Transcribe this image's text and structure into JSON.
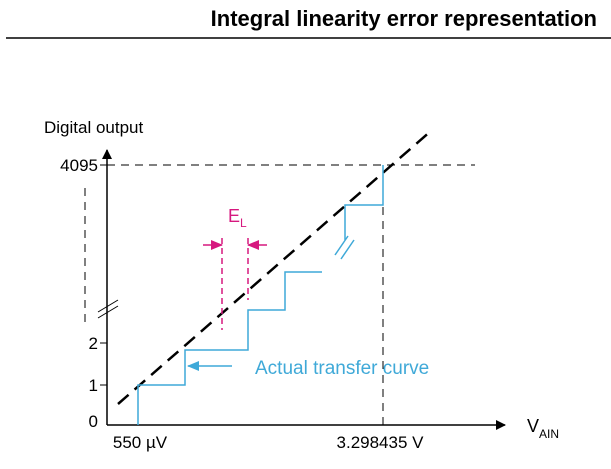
{
  "header": {
    "title": "Integral linearity error representation"
  },
  "diagram": {
    "y_axis_label": "Digital output",
    "y_ticks": [
      "4095",
      "2",
      "1",
      "0"
    ],
    "x_ticks": [
      "550 µV",
      "3.298435 V"
    ],
    "x_axis_label": {
      "main": "V",
      "sub": "AIN"
    },
    "error_label": {
      "main": "E",
      "sub": "L"
    },
    "curve_label": "Actual transfer curve"
  }
}
